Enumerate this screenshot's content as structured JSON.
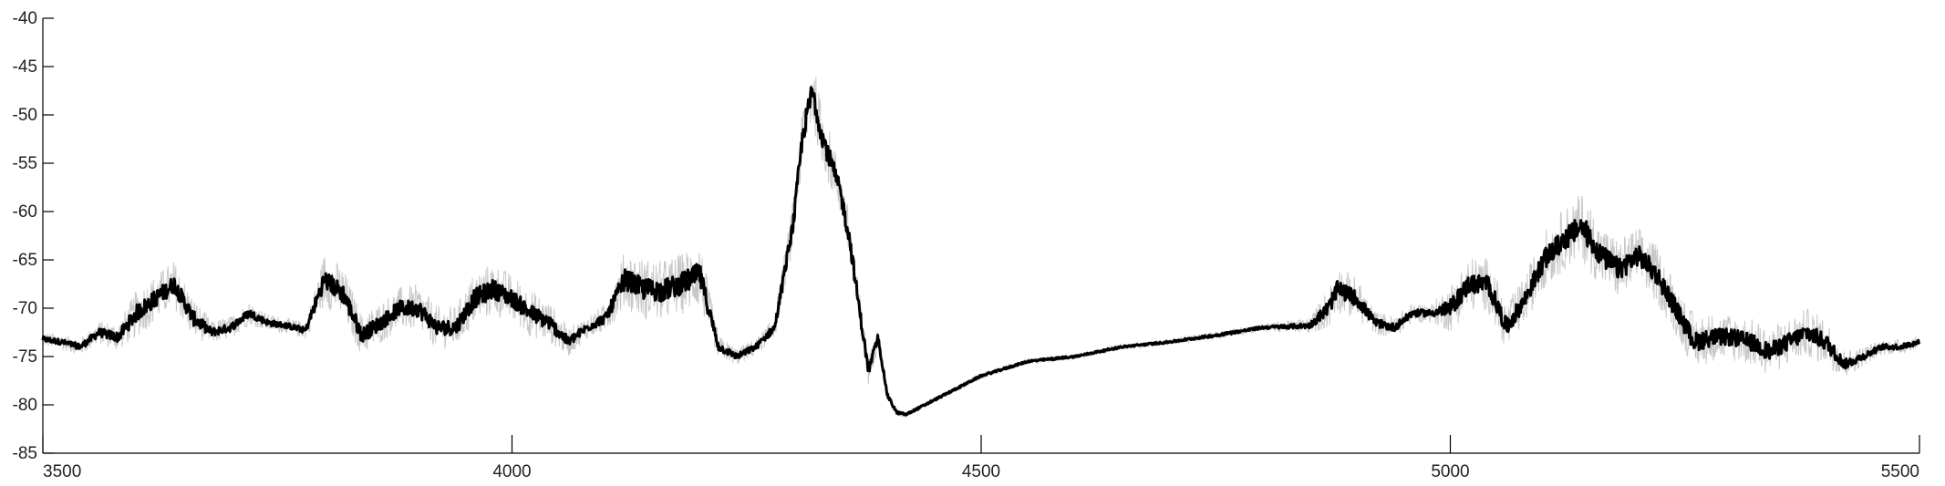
{
  "chart_data": {
    "type": "line",
    "title": "",
    "xlabel": "",
    "ylabel": "",
    "xlim": [
      3500,
      5500
    ],
    "ylim": [
      -85,
      -40
    ],
    "x_ticks": [
      3500,
      4000,
      4500,
      5000,
      5500
    ],
    "y_ticks": [
      -40,
      -45,
      -50,
      -55,
      -60,
      -65,
      -70,
      -75,
      -80,
      -85
    ],
    "x_tick_labels": [
      "3500",
      "4000",
      "4500",
      "5000",
      "5500"
    ],
    "y_tick_labels": [
      "-40",
      "-45",
      "-50",
      "-55",
      "-60",
      "-65",
      "-70",
      "-75",
      "-80",
      "-85"
    ],
    "grid": false,
    "legend": "none",
    "colors": {
      "mean_line": "#000000",
      "noise_band": "#c8c8c8"
    },
    "series": [
      {
        "x": [
          3500,
          3520,
          3540,
          3560,
          3580,
          3600,
          3620,
          3640,
          3660,
          3680,
          3700,
          3720,
          3740,
          3760,
          3780,
          3800,
          3820,
          3840,
          3860,
          3880,
          3900,
          3920,
          3940,
          3960,
          3980,
          4000,
          4020,
          4040,
          4060,
          4080,
          4100,
          4120,
          4140,
          4160,
          4180,
          4200,
          4220,
          4240,
          4260,
          4280,
          4300,
          4310,
          4320,
          4330,
          4340,
          4350,
          4360,
          4370,
          4380,
          4390,
          4400,
          4410,
          4420,
          4440,
          4460,
          4480,
          4500,
          4550,
          4600,
          4650,
          4700,
          4750,
          4800,
          4850,
          4870,
          4880,
          4900,
          4920,
          4940,
          4960,
          4980,
          5000,
          5020,
          5040,
          5060,
          5080,
          5100,
          5120,
          5140,
          5150,
          5160,
          5180,
          5200,
          5220,
          5240,
          5260,
          5280,
          5300,
          5320,
          5340,
          5360,
          5380,
          5400,
          5420,
          5440,
          5460,
          5480,
          5500
        ],
        "y": [
          -73.2,
          -73.5,
          -74,
          -72.5,
          -73,
          -70.5,
          -69,
          -67.5,
          -71,
          -72.5,
          -72,
          -70.5,
          -71.5,
          -71.8,
          -72.3,
          -67,
          -68.5,
          -72.8,
          -71.5,
          -70,
          -70,
          -72,
          -72,
          -69,
          -68,
          -69,
          -70.5,
          -71.5,
          -73.5,
          -72,
          -71,
          -67,
          -68,
          -68.2,
          -67.5,
          -66.5,
          -74,
          -75,
          -74,
          -72,
          -61,
          -52,
          -47.5,
          -52,
          -55,
          -58,
          -63,
          -70,
          -76.5,
          -73,
          -79,
          -80.8,
          -81,
          -80,
          -79,
          -78,
          -77,
          -75.5,
          -75,
          -74,
          -73.5,
          -72.8,
          -72,
          -71.8,
          -70,
          -68,
          -69,
          -71.5,
          -72,
          -70.5,
          -70.5,
          -70,
          -67.5,
          -67.5,
          -72,
          -69,
          -65,
          -63,
          -61.5,
          -63,
          -64.5,
          -66,
          -64.5,
          -66.5,
          -70,
          -73.5,
          -73,
          -73,
          -73.5,
          -74.5,
          -73.5,
          -72.5,
          -73.5,
          -75.8,
          -75,
          -74,
          -74,
          -73.5
        ],
        "noise": [
          0.8,
          0.8,
          0.9,
          1.2,
          1.5,
          2.5,
          2.5,
          2.5,
          2.2,
          1.2,
          1.2,
          1.2,
          0.9,
          0.8,
          0.9,
          2.8,
          2.8,
          2.2,
          2.2,
          2.2,
          2.5,
          2.2,
          2.2,
          2.8,
          2.8,
          2.5,
          2.5,
          2.2,
          1.5,
          1.2,
          1.5,
          3,
          3.2,
          3.2,
          3.2,
          3.5,
          1.2,
          0.9,
          0.9,
          1.2,
          2.5,
          3,
          3.5,
          3,
          3,
          2.5,
          2.5,
          2,
          1.5,
          1,
          0.6,
          0.4,
          0.3,
          0.3,
          0.3,
          0.3,
          0.3,
          0.3,
          0.3,
          0.3,
          0.3,
          0.4,
          0.4,
          0.8,
          2.2,
          2.5,
          2.2,
          1.2,
          1.2,
          1,
          1,
          2.5,
          2.8,
          2.8,
          2.5,
          2.5,
          3,
          3.2,
          3.5,
          3.5,
          3.2,
          3.2,
          3,
          3,
          2.8,
          2.8,
          2.5,
          2.5,
          2.5,
          2.5,
          2.5,
          2.5,
          2.5,
          1.5,
          1,
          0.8,
          0.8,
          0.6
        ]
      }
    ]
  }
}
